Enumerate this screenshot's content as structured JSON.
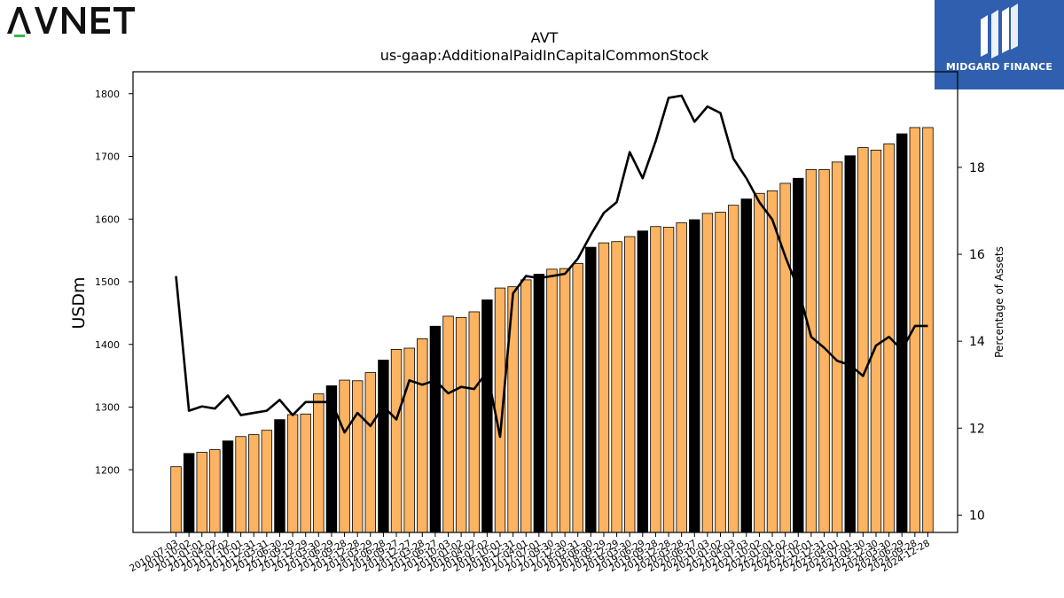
{
  "logos": {
    "left_text": "AVNET",
    "right_text": "MIDGARD FINANCE"
  },
  "colors": {
    "bar_regular": "#fdb462",
    "bar_highlight": "#000000",
    "line": "#000000",
    "midgard_bg": "#2f5fae"
  },
  "chart_data": {
    "type": "bar",
    "title": "AVT",
    "subtitle": "us-gaap:AdditionalPaidInCapitalCommonStock",
    "ylabel": "USDm",
    "ylabel_right": "Percentage of Assets",
    "ylim": [
      1100,
      1835
    ],
    "y_ticks": [
      1200,
      1300,
      1400,
      1500,
      1600,
      1700,
      1800
    ],
    "ylim_right": [
      9.6,
      20.2
    ],
    "y_right_ticks": [
      10,
      12,
      14,
      16,
      18
    ],
    "categories": [
      "2010-07-03",
      "2010-10-02",
      "2011-01-01",
      "2011-04-02",
      "2011-07-02",
      "2011-10-01",
      "2011-12-31",
      "2012-03-31",
      "2012-06-30",
      "2012-09-29",
      "2012-12-29",
      "2013-03-30",
      "2013-06-29",
      "2013-09-28",
      "2013-12-28",
      "2014-03-29",
      "2014-06-28",
      "2014-09-27",
      "2014-12-27",
      "2015-03-28",
      "2015-06-27",
      "2015-10-03",
      "2016-01-02",
      "2016-04-02",
      "2016-07-02",
      "2016-10-01",
      "2016-12-31",
      "2017-04-01",
      "2017-07-01",
      "2017-09-30",
      "2017-12-30",
      "2018-03-31",
      "2018-06-30",
      "2018-09-29",
      "2018-12-29",
      "2019-03-30",
      "2019-06-29",
      "2019-09-28",
      "2019-12-28",
      "2020-03-28",
      "2020-06-27",
      "2020-10-03",
      "2021-01-02",
      "2021-04-03",
      "2021-07-03",
      "2021-10-02",
      "2022-01-01",
      "2022-04-02",
      "2022-07-02",
      "2022-10-01",
      "2022-12-31",
      "2023-04-01",
      "2023-07-01",
      "2023-09-30",
      "2023-12-30",
      "2024-03-30",
      "2024-06-29",
      "2024-09-28",
      "2024-12-28"
    ],
    "highlighted_categories": [
      "2010-10-02",
      "2011-07-02",
      "2012-06-30",
      "2013-06-29",
      "2014-06-28",
      "2015-06-27",
      "2016-07-02",
      "2017-07-01",
      "2018-06-30",
      "2019-06-29",
      "2020-06-27",
      "2021-07-03",
      "2022-07-02",
      "2023-07-01",
      "2024-06-29"
    ],
    "series": [
      {
        "type": "bar",
        "axis": "left",
        "values": [
          1205,
          1226,
          1228,
          1232,
          1246,
          1253,
          1256,
          1263,
          1280,
          1288,
          1289,
          1321,
          1334,
          1343,
          1342,
          1355,
          1375,
          1392,
          1394,
          1409,
          1429,
          1445,
          1443,
          1452,
          1471,
          1490,
          1492,
          1503,
          1512,
          1520,
          1521,
          1529,
          1555,
          1562,
          1564,
          1572,
          1581,
          1588,
          1587,
          1594,
          1599,
          1609,
          1611,
          1622,
          1632,
          1641,
          1645,
          1657,
          1665,
          1679,
          1679,
          1691,
          1701,
          1714,
          1710,
          1720,
          1736,
          1746,
          1746
        ]
      },
      {
        "type": "line",
        "axis": "right",
        "values": [
          15.5,
          12.4,
          12.5,
          12.45,
          12.75,
          12.3,
          12.35,
          12.4,
          12.65,
          12.3,
          12.6,
          12.6,
          12.6,
          11.9,
          12.35,
          12.05,
          12.5,
          12.2,
          13.1,
          13.0,
          13.1,
          12.8,
          12.95,
          12.9,
          13.3,
          11.8,
          15.1,
          15.5,
          15.45,
          15.5,
          15.55,
          15.9,
          16.45,
          16.95,
          17.2,
          18.35,
          17.75,
          18.6,
          19.6,
          19.65,
          19.05,
          19.4,
          19.25,
          18.2,
          17.75,
          17.2,
          16.8,
          15.95,
          15.2,
          14.1,
          13.85,
          13.55,
          13.45,
          13.2,
          13.9,
          14.1,
          13.8,
          14.35,
          14.35
        ]
      }
    ],
    "grid": false,
    "legend": "none"
  }
}
